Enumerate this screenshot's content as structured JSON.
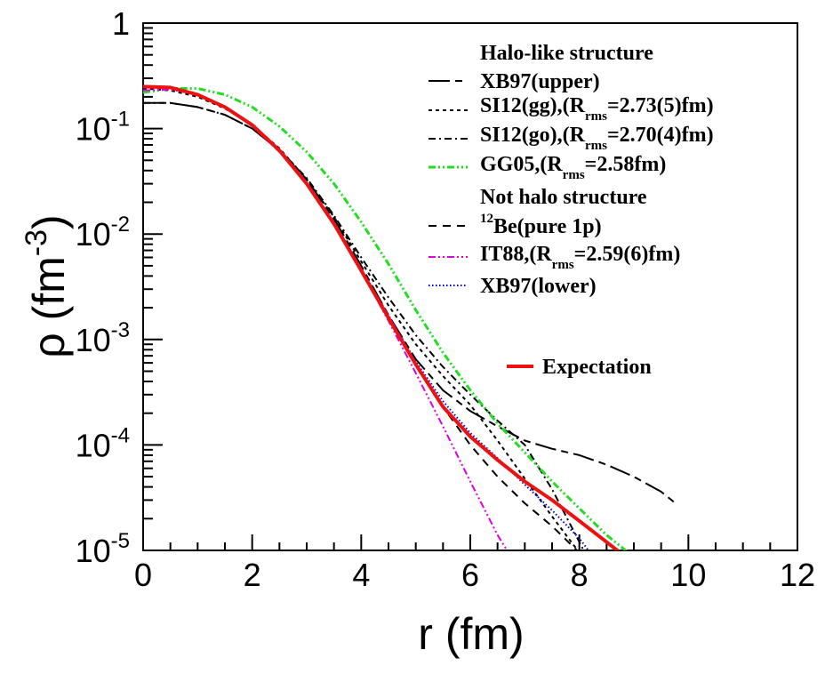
{
  "chart_data": {
    "type": "line",
    "xlabel": "r (fm)",
    "ylabel_base": "ρ (fm",
    "ylabel_exp": "-3",
    "ylabel_close": ")",
    "xlim": [
      0,
      12
    ],
    "ylim": [
      1e-05,
      1
    ],
    "yscale": "log",
    "grid": false,
    "legend_position": "top-right",
    "x_ticks": [
      "0",
      "2",
      "4",
      "6",
      "8",
      "10",
      "12"
    ],
    "y_ticks": [
      {
        "value": 1,
        "base": "1",
        "exp": ""
      },
      {
        "value": 0.1,
        "base": "10",
        "exp": "-1"
      },
      {
        "value": 0.01,
        "base": "10",
        "exp": "-2"
      },
      {
        "value": 0.001,
        "base": "10",
        "exp": "-3"
      },
      {
        "value": 0.0001,
        "base": "10",
        "exp": "-4"
      },
      {
        "value": 1e-05,
        "base": "10",
        "exp": "-5"
      }
    ],
    "legend_headers": [
      "Halo-like structure",
      "Not halo structure"
    ],
    "series": [
      {
        "name": "XB97(upper)",
        "color": "#000000",
        "dash": "long-dash",
        "width": 2,
        "points": [
          [
            0,
            0.175
          ],
          [
            0.5,
            0.175
          ],
          [
            1,
            0.16
          ],
          [
            1.5,
            0.135
          ],
          [
            2,
            0.1
          ],
          [
            2.5,
            0.062
          ],
          [
            3,
            0.033
          ],
          [
            3.5,
            0.014
          ],
          [
            4,
            0.005
          ],
          [
            4.5,
            0.0017
          ],
          [
            5,
            0.00065
          ],
          [
            5.5,
            0.00033
          ],
          [
            6,
            0.00021
          ],
          [
            6.5,
            0.00015
          ],
          [
            7,
            0.00011
          ],
          [
            7.5,
            9.2e-05
          ],
          [
            8,
            8e-05
          ],
          [
            8.5,
            6.5e-05
          ],
          [
            9,
            5e-05
          ],
          [
            9.5,
            3.6e-05
          ],
          [
            9.8,
            2.7e-05
          ]
        ]
      },
      {
        "name": "SI12(gg),(R_rms=2.73(5)fm)",
        "color": "#000000",
        "dash": "short-dash",
        "width": 2,
        "points": [
          [
            0,
            0.24
          ],
          [
            0.5,
            0.23
          ],
          [
            1,
            0.2
          ],
          [
            1.5,
            0.155
          ],
          [
            2,
            0.108
          ],
          [
            2.5,
            0.065
          ],
          [
            3,
            0.033
          ],
          [
            3.5,
            0.0145
          ],
          [
            4,
            0.0055
          ],
          [
            4.5,
            0.0021
          ],
          [
            5,
            0.0009
          ],
          [
            5.5,
            0.00045
          ],
          [
            6,
            0.00024
          ],
          [
            6.5,
            0.00011
          ],
          [
            7,
            4.8e-05
          ],
          [
            7.5,
            2.1e-05
          ],
          [
            8,
            9.5e-06
          ]
        ]
      },
      {
        "name": "SI12(go),(R_rms=2.70(4)fm)",
        "color": "#000000",
        "dash": "dash-dot",
        "width": 2,
        "points": [
          [
            0,
            0.175
          ],
          [
            0.5,
            0.175
          ],
          [
            1,
            0.16
          ],
          [
            1.5,
            0.135
          ],
          [
            2,
            0.1
          ],
          [
            2.5,
            0.063
          ],
          [
            3,
            0.034
          ],
          [
            3.5,
            0.015
          ],
          [
            4,
            0.006
          ],
          [
            4.5,
            0.0025
          ],
          [
            5,
            0.0011
          ],
          [
            5.5,
            0.00055
          ],
          [
            6,
            0.0003
          ],
          [
            6.5,
            0.00017
          ],
          [
            7,
            0.0001
          ],
          [
            7.5,
            3.8e-05
          ],
          [
            8,
            1.2e-05
          ],
          [
            8.1,
            9.5e-06
          ]
        ]
      },
      {
        "name": "GG05,(R_rms=2.58fm)",
        "color": "#22dd22",
        "dash": "dash-dot-dot",
        "width": 3,
        "points": [
          [
            0,
            0.22
          ],
          [
            0.5,
            0.24
          ],
          [
            1,
            0.24
          ],
          [
            1.5,
            0.21
          ],
          [
            2,
            0.16
          ],
          [
            2.5,
            0.105
          ],
          [
            3,
            0.06
          ],
          [
            3.5,
            0.03
          ],
          [
            4,
            0.013
          ],
          [
            4.5,
            0.0052
          ],
          [
            5,
            0.0019
          ],
          [
            5.5,
            0.00075
          ],
          [
            6,
            0.00033
          ],
          [
            6.5,
            0.00016
          ],
          [
            7,
            8.5e-05
          ],
          [
            7.5,
            4.5e-05
          ],
          [
            8,
            2.5e-05
          ],
          [
            8.5,
            1.4e-05
          ],
          [
            8.9,
            9.5e-06
          ]
        ]
      },
      {
        "name": "12Be(pure 1p)",
        "color": "#000000",
        "dash": "medium-dash",
        "width": 2,
        "points": [
          [
            0,
            0.25
          ],
          [
            0.5,
            0.245
          ],
          [
            1,
            0.21
          ],
          [
            1.5,
            0.16
          ],
          [
            2,
            0.11
          ],
          [
            2.5,
            0.063
          ],
          [
            3,
            0.031
          ],
          [
            3.5,
            0.013
          ],
          [
            4,
            0.0047
          ],
          [
            4.5,
            0.0016
          ],
          [
            5,
            0.0006
          ],
          [
            5.5,
            0.00023
          ],
          [
            6,
            0.0001
          ],
          [
            6.5,
            5e-05
          ],
          [
            7,
            2.8e-05
          ],
          [
            7.5,
            1.7e-05
          ],
          [
            8,
            9.5e-06
          ]
        ]
      },
      {
        "name": "IT88,(R_rms=2.59(6)fm)",
        "color": "#dd00dd",
        "dash": "dash-dot-dot",
        "width": 2,
        "points": [
          [
            0,
            0.23
          ],
          [
            0.5,
            0.235
          ],
          [
            1,
            0.21
          ],
          [
            1.5,
            0.16
          ],
          [
            2,
            0.105
          ],
          [
            2.5,
            0.06
          ],
          [
            3,
            0.03
          ],
          [
            3.5,
            0.0125
          ],
          [
            4,
            0.0045
          ],
          [
            4.5,
            0.0015
          ],
          [
            5,
            0.00048
          ],
          [
            5.5,
            0.00015
          ],
          [
            6,
            4.5e-05
          ],
          [
            6.5,
            1.4e-05
          ],
          [
            6.7,
            9.5e-06
          ]
        ]
      },
      {
        "name": "XB97(lower)",
        "color": "#0000cc",
        "dash": "dotted",
        "width": 2,
        "points": [
          [
            0,
            0.25
          ],
          [
            0.5,
            0.245
          ],
          [
            1,
            0.21
          ],
          [
            1.5,
            0.16
          ],
          [
            2,
            0.11
          ],
          [
            2.5,
            0.063
          ],
          [
            3,
            0.031
          ],
          [
            3.5,
            0.013
          ],
          [
            4,
            0.0047
          ],
          [
            4.5,
            0.0017
          ],
          [
            5,
            0.00062
          ],
          [
            5.5,
            0.00026
          ],
          [
            6,
            0.00013
          ],
          [
            6.5,
            7.5e-05
          ],
          [
            7,
            4.2e-05
          ],
          [
            7.5,
            2.4e-05
          ],
          [
            8,
            1.3e-05
          ],
          [
            8.2,
            9.5e-06
          ]
        ]
      },
      {
        "name": "Expectation",
        "color": "#ee1111",
        "dash": "solid",
        "width": 4,
        "points": [
          [
            0,
            0.25
          ],
          [
            0.5,
            0.245
          ],
          [
            1,
            0.21
          ],
          [
            1.5,
            0.16
          ],
          [
            2,
            0.108
          ],
          [
            2.5,
            0.062
          ],
          [
            3,
            0.03
          ],
          [
            3.5,
            0.0125
          ],
          [
            4,
            0.0045
          ],
          [
            4.5,
            0.0016
          ],
          [
            5,
            0.00058
          ],
          [
            5.5,
            0.00023
          ],
          [
            6,
            0.00012
          ],
          [
            6.5,
            7.2e-05
          ],
          [
            7,
            4.5e-05
          ],
          [
            7.5,
            3e-05
          ],
          [
            8,
            1.9e-05
          ],
          [
            8.5,
            1.2e-05
          ],
          [
            8.75,
            9.5e-06
          ]
        ]
      }
    ]
  },
  "legend": {
    "header1": "Halo-like structure",
    "header2": "Not halo structure",
    "xb97_upper": "XB97(upper)",
    "si12gg_pre": "SI12(gg),(R",
    "si12gg_sub": "rms",
    "si12gg_post": "=2.73(5)fm)",
    "si12go_pre": "SI12(go),(R",
    "si12go_sub": "rms",
    "si12go_post": "=2.70(4)fm)",
    "gg05_pre": "GG05,(R",
    "gg05_sub": "rms",
    "gg05_post": "=2.58fm)",
    "be12_sup": "12",
    "be12_main": "Be(pure 1p)",
    "it88_pre": "IT88,(R",
    "it88_sub": "rms",
    "it88_post": "=2.59(6)fm)",
    "xb97_lower": "XB97(lower)",
    "expectation": "Expectation"
  }
}
